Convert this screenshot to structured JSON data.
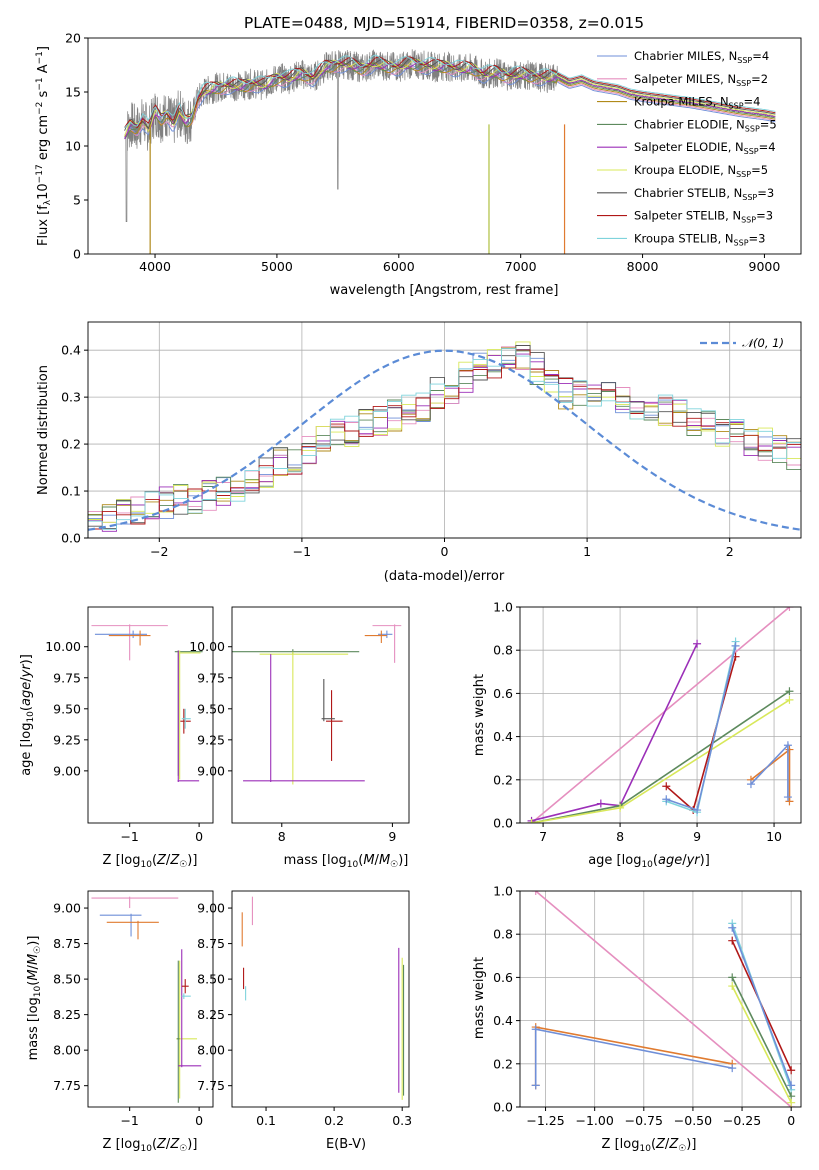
{
  "figure": {
    "title": "PLATE=0488, MJD=51914, FIBERID=0358, z=0.015"
  },
  "colors": {
    "Chabrier MILES": "#6f8fd8",
    "Salpeter MILES": "#e58fbf",
    "Kroupa MILES": "#b08a1a",
    "Chabrier ELODIE": "#5d8a5d",
    "Salpeter ELODIE": "#9b2fb8",
    "Kroupa ELODIE": "#d8e85a",
    "Chabrier STELIB": "#555555",
    "Salpeter STELIB": "#b01818",
    "Kroupa STELIB": "#7fd3dc",
    "observed": "#808080",
    "normal": "#5b8bd6",
    "orange": "#e07b30"
  },
  "chart_data": [
    {
      "id": "spectrum",
      "type": "line",
      "xlabel": "wavelength [Angstrom, rest frame]",
      "ylabel": "Flux [f_λ10^-17 erg cm^-2 s^-1 A^-1]",
      "xlim": [
        3450,
        9300
      ],
      "ylim": [
        0,
        20
      ],
      "xticks": [
        4000,
        5000,
        6000,
        7000,
        8000,
        9000
      ],
      "yticks": [
        0,
        5,
        10,
        15,
        20
      ],
      "grid": false,
      "legend_position": "upper-right",
      "legend": [
        {
          "model": "Chabrier MILES",
          "nssp": "4"
        },
        {
          "model": "Salpeter MILES",
          "nssp": "2"
        },
        {
          "model": "Kroupa MILES",
          "nssp": "4"
        },
        {
          "model": "Chabrier ELODIE",
          "nssp": "5"
        },
        {
          "model": "Salpeter ELODIE",
          "nssp": "4"
        },
        {
          "model": "Kroupa ELODIE",
          "nssp": "5"
        },
        {
          "model": "Chabrier STELIB",
          "nssp": "3"
        },
        {
          "model": "Salpeter STELIB",
          "nssp": "3"
        },
        {
          "model": "Kroupa STELIB",
          "nssp": "3"
        }
      ],
      "model_curve": {
        "x": [
          3750,
          3800,
          3850,
          3900,
          3950,
          4000,
          4050,
          4100,
          4150,
          4200,
          4250,
          4300,
          4350,
          4400,
          4500,
          4600,
          4700,
          4800,
          4900,
          5000,
          5100,
          5200,
          5300,
          5400,
          5500,
          5600,
          5700,
          5800,
          5900,
          6000,
          6100,
          6200,
          6300,
          6400,
          6500,
          6600,
          6700,
          6800,
          6900,
          7000,
          7100,
          7200,
          7300,
          7400,
          7500,
          7600,
          7700,
          7800,
          7900,
          8000,
          8200,
          8400,
          8600,
          8800,
          9000,
          9100
        ],
        "y": [
          11.0,
          12.0,
          11.6,
          12.4,
          11.5,
          13.2,
          12.5,
          13.0,
          12.0,
          13.2,
          12.2,
          12.6,
          14.3,
          15.0,
          15.4,
          15.6,
          15.5,
          15.8,
          15.6,
          16.3,
          16.2,
          16.7,
          16.3,
          17.3,
          17.6,
          17.5,
          17.2,
          17.6,
          17.4,
          17.3,
          17.6,
          17.5,
          17.3,
          17.4,
          17.1,
          17.2,
          16.6,
          16.8,
          16.5,
          16.6,
          16.5,
          16.3,
          16.4,
          15.8,
          16.1,
          15.6,
          15.4,
          15.2,
          14.8,
          14.6,
          14.3,
          14.0,
          13.6,
          13.2,
          12.9,
          12.7
        ]
      }
    },
    {
      "id": "residuals",
      "type": "step",
      "xlabel": "(data-model)/error",
      "ylabel": "Normed distribution",
      "xlim": [
        -2.5,
        2.5
      ],
      "ylim": [
        0,
        0.46
      ],
      "xticks": [
        -2,
        -1,
        0,
        1,
        2
      ],
      "yticks": [
        0.0,
        0.1,
        0.2,
        0.3,
        0.4
      ],
      "grid": true,
      "legend_position": "upper-right",
      "gaussian_label": "N(0,1)",
      "bin_width": 0.1,
      "bin_start": -2.5,
      "base_values": [
        0.045,
        0.04,
        0.05,
        0.06,
        0.07,
        0.075,
        0.08,
        0.085,
        0.09,
        0.095,
        0.11,
        0.13,
        0.14,
        0.16,
        0.17,
        0.19,
        0.21,
        0.22,
        0.23,
        0.24,
        0.25,
        0.26,
        0.27,
        0.28,
        0.31,
        0.32,
        0.34,
        0.36,
        0.37,
        0.38,
        0.39,
        0.36,
        0.33,
        0.31,
        0.3,
        0.31,
        0.3,
        0.29,
        0.28,
        0.27,
        0.27,
        0.26,
        0.25,
        0.24,
        0.23,
        0.22,
        0.21,
        0.2,
        0.19,
        0.18,
        0.17,
        0.15,
        0.14,
        0.13,
        0.12,
        0.11,
        0.1,
        0.09,
        0.08,
        0.07,
        0.065,
        0.06,
        0.055,
        0.05,
        0.045,
        0.04,
        0.04,
        0.035,
        0.035,
        0.03
      ]
    },
    {
      "id": "age_vs_Z",
      "type": "errorbar",
      "xlabel": "Z [log10(Z/Z☉)]",
      "ylabel": "age  [log10(age/yr)]",
      "xlim": [
        -1.6,
        0.2
      ],
      "ylim": [
        8.58,
        10.32
      ],
      "xticks": [
        -1,
        0
      ],
      "yticks": [
        9.0,
        9.25,
        9.5,
        9.75,
        10.0
      ]
    },
    {
      "id": "age_vs_mass",
      "type": "errorbar",
      "xlabel": "mass [log10(M/M☉)]",
      "ylabel": "",
      "xlim": [
        7.55,
        9.15
      ],
      "ylim": [
        8.58,
        10.32
      ],
      "xticks": [
        8,
        9
      ],
      "yticks": [
        9.0,
        9.25,
        9.5,
        9.75,
        10.0
      ]
    },
    {
      "id": "weight_vs_age",
      "type": "line",
      "xlabel": "age  [log10(age/yr)]",
      "ylabel": "mass weight",
      "xlim": [
        6.7,
        10.35
      ],
      "ylim": [
        0,
        1
      ],
      "xticks": [
        7,
        8,
        9,
        10
      ],
      "yticks": [
        0.0,
        0.2,
        0.4,
        0.6,
        0.8,
        1.0
      ],
      "grid": true,
      "series": [
        {
          "color_key": "Salpeter MILES",
          "x": [
            6.85,
            10.2
          ],
          "y": [
            0.0,
            1.0
          ]
        },
        {
          "color_key": "Salpeter ELODIE",
          "x": [
            6.85,
            7.75,
            8.0,
            9.0
          ],
          "y": [
            0.01,
            0.09,
            0.08,
            0.83
          ]
        },
        {
          "color_key": "Chabrier ELODIE",
          "x": [
            6.85,
            8.0,
            10.2
          ],
          "y": [
            0.0,
            0.08,
            0.61
          ]
        },
        {
          "color_key": "Kroupa ELODIE",
          "x": [
            6.85,
            8.0,
            10.2
          ],
          "y": [
            0.0,
            0.07,
            0.57
          ]
        },
        {
          "color_key": "Salpeter STELIB",
          "x": [
            8.6,
            8.95,
            9.5
          ],
          "y": [
            0.17,
            0.06,
            0.77
          ]
        },
        {
          "color_key": "Kroupa STELIB",
          "x": [
            8.6,
            9.0,
            9.5
          ],
          "y": [
            0.1,
            0.05,
            0.84
          ]
        },
        {
          "color_key": "Chabrier MILES",
          "x": [
            8.6,
            9.0,
            9.5
          ],
          "y": [
            0.11,
            0.06,
            0.82
          ]
        },
        {
          "color_key": "orange",
          "x": [
            9.7,
            10.2,
            10.2
          ],
          "y": [
            0.2,
            0.34,
            0.1
          ]
        },
        {
          "color_key": "Chabrier MILES",
          "x": [
            9.7,
            10.18,
            10.18
          ],
          "y": [
            0.18,
            0.36,
            0.12
          ]
        }
      ]
    },
    {
      "id": "mass_vs_Z",
      "type": "errorbar",
      "xlabel": "Z [log10(Z/Z☉)]",
      "ylabel": "mass [log10(M/M☉)]",
      "xlim": [
        -1.6,
        0.2
      ],
      "ylim": [
        7.6,
        9.12
      ],
      "xticks": [
        -1,
        0
      ],
      "yticks": [
        7.75,
        8.0,
        8.25,
        8.5,
        8.75,
        9.0
      ]
    },
    {
      "id": "mass_vs_ebv",
      "type": "errorbar",
      "xlabel": "E(B-V)",
      "ylabel": "",
      "xlim": [
        0.05,
        0.31
      ],
      "ylim": [
        7.6,
        9.12
      ],
      "xticks": [
        0.1,
        0.2,
        0.3
      ],
      "yticks": [
        7.75,
        8.0,
        8.25,
        8.5,
        8.75,
        9.0
      ]
    },
    {
      "id": "weight_vs_Z",
      "type": "line",
      "xlabel": "Z [log10(Z/Z☉)]",
      "ylabel": "mass weight",
      "xlim": [
        -1.38,
        0.05
      ],
      "ylim": [
        0,
        1
      ],
      "xticks": [
        -1.25,
        -1.0,
        -0.75,
        -0.5,
        -0.25,
        0.0
      ],
      "yticks": [
        0.0,
        0.2,
        0.4,
        0.6,
        0.8,
        1.0
      ],
      "grid": true,
      "series": [
        {
          "color_key": "Salpeter MILES",
          "x": [
            -1.3,
            0.0
          ],
          "y": [
            1.0,
            0.0
          ]
        },
        {
          "color_key": "orange",
          "x": [
            -1.3,
            -1.3,
            -0.3
          ],
          "y": [
            0.1,
            0.37,
            0.2
          ]
        },
        {
          "color_key": "Chabrier MILES",
          "x": [
            -1.3,
            -1.3,
            -0.3
          ],
          "y": [
            0.1,
            0.36,
            0.18
          ]
        },
        {
          "color_key": "Salpeter STELIB",
          "x": [
            -0.3,
            0.0
          ],
          "y": [
            0.77,
            0.17
          ]
        },
        {
          "color_key": "Kroupa STELIB",
          "x": [
            -0.3,
            0.0
          ],
          "y": [
            0.85,
            0.08
          ]
        },
        {
          "color_key": "Chabrier MILES",
          "x": [
            -0.3,
            0.0
          ],
          "y": [
            0.83,
            0.1
          ]
        },
        {
          "color_key": "Chabrier ELODIE",
          "x": [
            -0.3,
            0.0
          ],
          "y": [
            0.6,
            0.05
          ]
        },
        {
          "color_key": "Kroupa ELODIE",
          "x": [
            -0.3,
            0.0
          ],
          "y": [
            0.56,
            0.02
          ]
        }
      ]
    }
  ]
}
